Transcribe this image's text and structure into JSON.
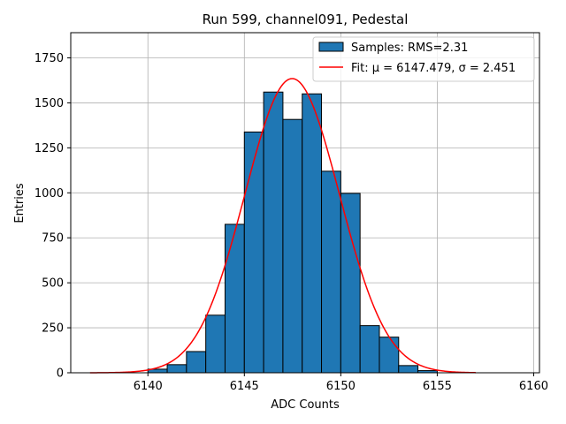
{
  "chart_data": {
    "type": "bar",
    "title": "Run 599, channel091, Pedestal",
    "xlabel": "ADC Counts",
    "ylabel": "Entries",
    "xlim": [
      6136,
      6160.3
    ],
    "ylim": [
      0,
      1890
    ],
    "xticks": [
      6140,
      6145,
      6150,
      6155,
      6160
    ],
    "yticks": [
      0,
      250,
      500,
      750,
      1000,
      1250,
      1500,
      1750
    ],
    "grid": true,
    "legend_position": "top-right",
    "bin_width": 1,
    "bins": [
      {
        "start": 6140,
        "count": 20
      },
      {
        "start": 6141,
        "count": 45
      },
      {
        "start": 6142,
        "count": 118
      },
      {
        "start": 6143,
        "count": 320
      },
      {
        "start": 6144,
        "count": 825
      },
      {
        "start": 6145,
        "count": 1338
      },
      {
        "start": 6146,
        "count": 1560
      },
      {
        "start": 6147,
        "count": 1408
      },
      {
        "start": 6148,
        "count": 1550
      },
      {
        "start": 6149,
        "count": 1120
      },
      {
        "start": 6150,
        "count": 997
      },
      {
        "start": 6151,
        "count": 262
      },
      {
        "start": 6152,
        "count": 198
      },
      {
        "start": 6153,
        "count": 40
      },
      {
        "start": 6154,
        "count": 12
      }
    ],
    "series": [
      {
        "name": "Samples: RMS=2.31",
        "kind": "histogram",
        "color": "#1f77b4"
      },
      {
        "name": "Fit: μ = 6147.479, σ = 2.451",
        "kind": "gaussian",
        "mu": 6147.479,
        "sigma": 2.451,
        "amplitude": 1635,
        "x_range": [
          6137,
          6157
        ],
        "color": "#ff0000"
      }
    ]
  }
}
